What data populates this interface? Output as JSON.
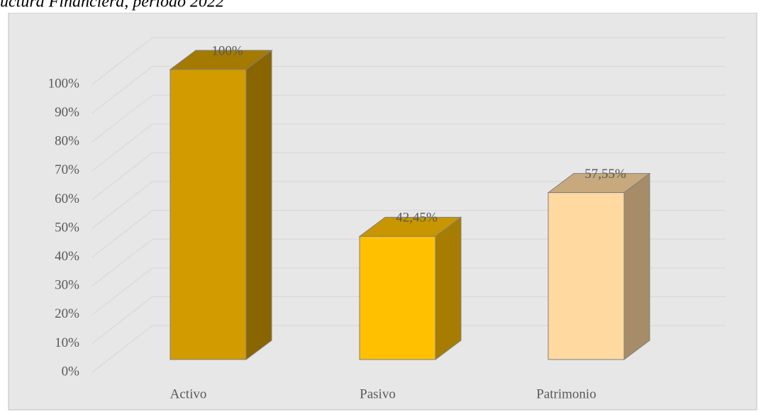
{
  "chart_data": {
    "type": "bar3d",
    "title": "uctura Financiera, periodo 2022",
    "categories": [
      "Activo",
      "Pasivo",
      "Patrimonio"
    ],
    "values": [
      100,
      42.45,
      57.55
    ],
    "value_labels": [
      "100%",
      "42,45%",
      "57,55%"
    ],
    "colors": [
      "#d29c00",
      "#ffc000",
      "#ffd9a0"
    ],
    "ylim": [
      0,
      100
    ],
    "yticks": [
      {
        "value": 0,
        "label": "0%"
      },
      {
        "value": 10,
        "label": "10%"
      },
      {
        "value": 20,
        "label": "20%"
      },
      {
        "value": 30,
        "label": "30%"
      },
      {
        "value": 40,
        "label": "40%"
      },
      {
        "value": 50,
        "label": "50%"
      },
      {
        "value": 60,
        "label": "60%"
      },
      {
        "value": 70,
        "label": "70%"
      },
      {
        "value": 80,
        "label": "80%"
      },
      {
        "value": 90,
        "label": "90%"
      },
      {
        "value": 100,
        "label": "100%"
      }
    ],
    "grid": true
  }
}
